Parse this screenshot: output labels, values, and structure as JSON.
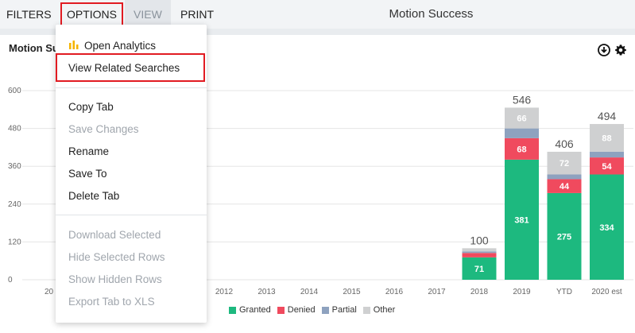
{
  "topbar": {
    "filters_label": "FILTERS",
    "options_label": "OPTIONS",
    "view_label": "VIEW",
    "print_label": "PRINT",
    "page_title": "Motion Success"
  },
  "panel": {
    "title": "Motion Success"
  },
  "menu": {
    "items": [
      {
        "label": "Open Analytics",
        "enabled": true
      },
      {
        "label": "View Related Searches",
        "enabled": true
      },
      {
        "label": "Copy Tab",
        "enabled": true
      },
      {
        "label": "Save Changes",
        "enabled": false
      },
      {
        "label": "Rename",
        "enabled": true
      },
      {
        "label": "Save To",
        "enabled": true
      },
      {
        "label": "Delete Tab",
        "enabled": true
      },
      {
        "label": "Download Selected",
        "enabled": false
      },
      {
        "label": "Hide Selected Rows",
        "enabled": false
      },
      {
        "label": "Show Hidden Rows",
        "enabled": false
      },
      {
        "label": "Export Tab to XLS",
        "enabled": false
      }
    ]
  },
  "icons": {
    "download": "download-icon",
    "settings": "gear-icon",
    "analytics": "bar-chart-icon"
  },
  "colors": {
    "granted": "#1db97f",
    "denied": "#f04a5e",
    "partial": "#8ea2bf",
    "other": "#cfd0d1",
    "highlight": "#e11b22"
  },
  "chart_data": {
    "type": "bar",
    "stacked": true,
    "categories": [
      "2012",
      "2013",
      "2014",
      "2015",
      "2016",
      "2017",
      "2018",
      "2019",
      "YTD",
      "2020 est"
    ],
    "partial_category_prefix": "20",
    "ylim": [
      0,
      600
    ],
    "yticks": [
      0,
      120,
      240,
      360,
      480,
      600
    ],
    "series": [
      {
        "name": "Granted",
        "values": [
          0,
          0,
          0,
          0,
          0,
          0,
          71,
          381,
          275,
          334
        ],
        "labels": [
          "",
          "",
          "",
          "",
          "",
          "",
          "71",
          "381",
          "275",
          "334"
        ]
      },
      {
        "name": "Denied",
        "values": [
          0,
          0,
          0,
          0,
          0,
          0,
          14,
          68,
          44,
          54
        ],
        "labels": [
          "",
          "",
          "",
          "",
          "",
          "",
          "",
          "68",
          "44",
          "54"
        ]
      },
      {
        "name": "Partial",
        "values": [
          0,
          0,
          0,
          0,
          0,
          0,
          5,
          31,
          15,
          18
        ],
        "labels": [
          "",
          "",
          "",
          "",
          "",
          "",
          "",
          "",
          "",
          ""
        ]
      },
      {
        "name": "Other",
        "values": [
          0,
          0,
          0,
          0,
          0,
          0,
          10,
          66,
          72,
          88
        ],
        "labels": [
          "",
          "",
          "",
          "",
          "",
          "",
          "",
          "66",
          "72",
          "88"
        ]
      }
    ],
    "totals": [
      "",
      "",
      "",
      "",
      "",
      "",
      "100",
      "546",
      "406",
      "494"
    ],
    "legend_position": "bottom",
    "grid": true
  }
}
